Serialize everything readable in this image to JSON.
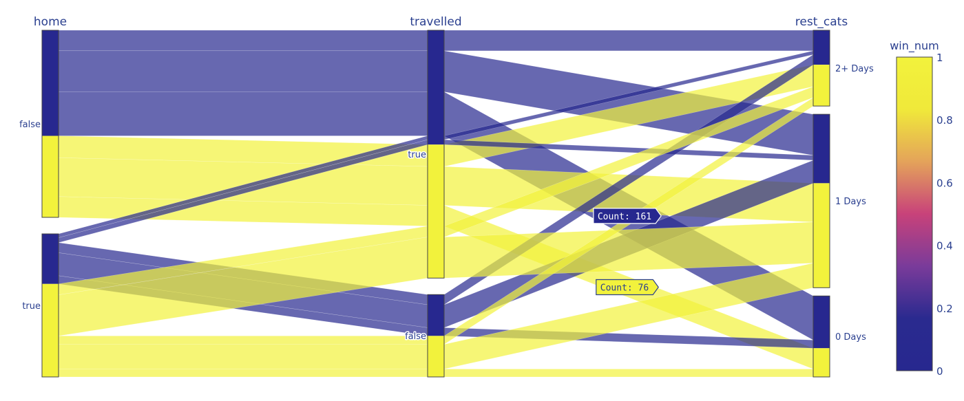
{
  "chart_data": {
    "type": "parallel_categories",
    "dimensions": [
      {
        "label": "home",
        "categories": [
          "false",
          "true"
        ]
      },
      {
        "label": "travelled",
        "categories": [
          "true",
          "false"
        ]
      },
      {
        "label": "rest_cats",
        "categories": [
          "2+ Days",
          "1 Days",
          "0 Days"
        ]
      }
    ],
    "color_variable": "win_num",
    "colorscale": [
      "#27288f",
      "#2a2a8f",
      "#7a3b9a",
      "#c8427a",
      "#e4a35a",
      "#f0e93a",
      "#f2f23c"
    ],
    "colorbar": {
      "title": "win_num",
      "range": [
        0,
        1
      ],
      "ticks": [
        "0",
        "0.2",
        "0.4",
        "0.6",
        "0.8",
        "1"
      ]
    },
    "paths": [
      {
        "home": "false",
        "travelled": "true",
        "rest_cats": "2+ Days",
        "win_num": 0,
        "count": 75
      },
      {
        "home": "false",
        "travelled": "true",
        "rest_cats": "1 Days",
        "win_num": 0,
        "count": 150
      },
      {
        "home": "false",
        "travelled": "true",
        "rest_cats": "0 Days",
        "win_num": 0,
        "count": 161
      },
      {
        "home": "false",
        "travelled": "true",
        "rest_cats": "2+ Days",
        "win_num": 1,
        "count": 80
      },
      {
        "home": "false",
        "travelled": "true",
        "rest_cats": "1 Days",
        "win_num": 1,
        "count": 142
      },
      {
        "home": "false",
        "travelled": "true",
        "rest_cats": "0 Days",
        "win_num": 1,
        "count": 76
      },
      {
        "home": "true",
        "travelled": "true",
        "rest_cats": "2+ Days",
        "win_num": 0,
        "count": 14
      },
      {
        "home": "true",
        "travelled": "true",
        "rest_cats": "1 Days",
        "win_num": 0,
        "count": 18
      },
      {
        "home": "true",
        "travelled": "false",
        "rest_cats": "2+ Days",
        "win_num": 0,
        "count": 37
      },
      {
        "home": "true",
        "travelled": "false",
        "rest_cats": "1 Days",
        "win_num": 0,
        "count": 84
      },
      {
        "home": "true",
        "travelled": "false",
        "rest_cats": "0 Days",
        "win_num": 0,
        "count": 30
      },
      {
        "home": "true",
        "travelled": "true",
        "rest_cats": "2+ Days",
        "win_num": 1,
        "count": 40
      },
      {
        "home": "true",
        "travelled": "true",
        "rest_cats": "1 Days",
        "win_num": 1,
        "count": 150
      },
      {
        "home": "true",
        "travelled": "false",
        "rest_cats": "2+ Days",
        "win_num": 1,
        "count": 31
      },
      {
        "home": "true",
        "travelled": "false",
        "rest_cats": "1 Days",
        "win_num": 1,
        "count": 90
      },
      {
        "home": "true",
        "travelled": "false",
        "rest_cats": "0 Days",
        "win_num": 1,
        "count": 29
      }
    ],
    "tooltips": [
      {
        "text": "Count: 161",
        "color": "#27288f",
        "text_color": "#ffffff",
        "path_index": 2
      },
      {
        "text": "Count: 76",
        "color": "#f2f23c",
        "text_color": "#2a3f8f",
        "path_index": 5
      }
    ]
  }
}
